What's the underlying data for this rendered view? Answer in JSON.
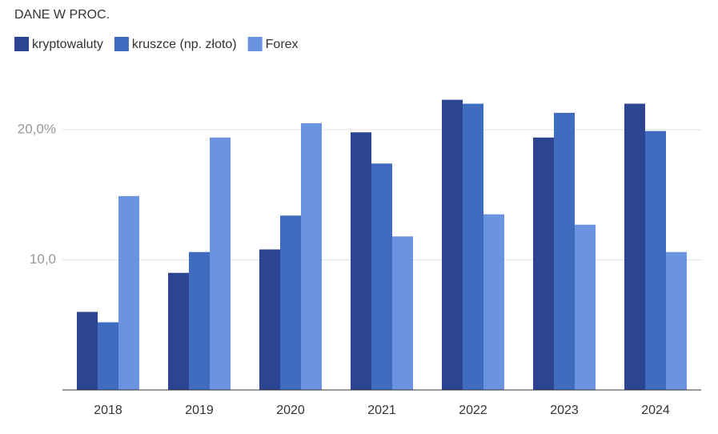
{
  "chart_data": {
    "type": "bar",
    "title": "DANE W PROC.",
    "categories": [
      "2018",
      "2019",
      "2020",
      "2021",
      "2022",
      "2023",
      "2024"
    ],
    "series": [
      {
        "name": "kryptowaluty",
        "color": "#2b4590",
        "values": [
          6.0,
          9.0,
          10.8,
          19.8,
          22.3,
          19.4,
          22.0
        ]
      },
      {
        "name": "kruszce (np. złoto)",
        "color": "#3f6cbf",
        "values": [
          5.2,
          10.6,
          13.4,
          17.4,
          22.0,
          21.3,
          19.9
        ]
      },
      {
        "name": "Forex",
        "color": "#6a94e0",
        "values": [
          14.9,
          19.4,
          20.5,
          11.8,
          13.5,
          12.7,
          10.6
        ]
      }
    ],
    "ylim": [
      0,
      24
    ],
    "yticks": [
      {
        "value": 10,
        "label": "10,0"
      },
      {
        "value": 20,
        "label": "20,0%"
      }
    ],
    "grid": true
  }
}
